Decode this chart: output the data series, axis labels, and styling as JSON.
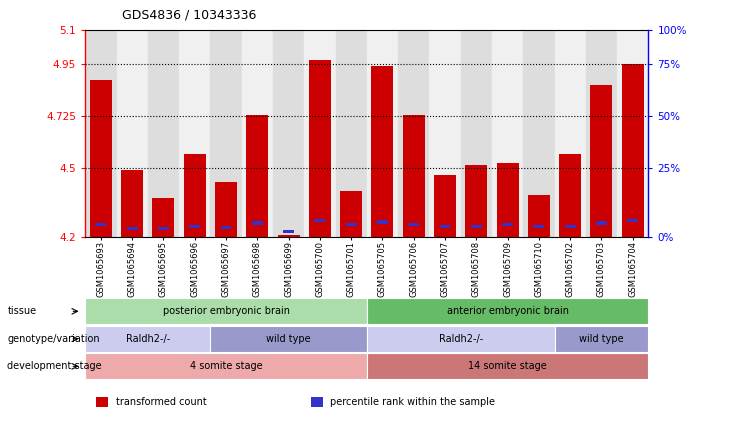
{
  "title": "GDS4836 / 10343336",
  "samples": [
    "GSM1065693",
    "GSM1065694",
    "GSM1065695",
    "GSM1065696",
    "GSM1065697",
    "GSM1065698",
    "GSM1065699",
    "GSM1065700",
    "GSM1065701",
    "GSM1065705",
    "GSM1065706",
    "GSM1065707",
    "GSM1065708",
    "GSM1065709",
    "GSM1065710",
    "GSM1065702",
    "GSM1065703",
    "GSM1065704"
  ],
  "red_values": [
    4.88,
    4.49,
    4.37,
    4.56,
    4.44,
    4.73,
    4.21,
    4.97,
    4.4,
    4.94,
    4.73,
    4.47,
    4.51,
    4.52,
    4.38,
    4.56,
    4.86,
    4.95
  ],
  "blue_values": [
    4.255,
    4.235,
    4.235,
    4.245,
    4.24,
    4.26,
    4.225,
    4.27,
    4.255,
    4.265,
    4.255,
    4.245,
    4.245,
    4.255,
    4.245,
    4.245,
    4.26,
    4.27
  ],
  "y_min": 4.2,
  "y_max": 5.1,
  "y_ticks_left": [
    4.2,
    4.5,
    4.725,
    4.95,
    5.1
  ],
  "y_ticks_right": [
    0,
    25,
    50,
    75,
    100
  ],
  "y_right_positions": [
    4.2,
    4.5,
    4.725,
    4.95,
    5.1
  ],
  "dotted_lines": [
    4.95,
    4.725,
    4.5
  ],
  "bar_color": "#cc0000",
  "blue_color": "#3333cc",
  "tissue_groups": [
    {
      "label": "posterior embryonic brain",
      "start": 0,
      "end": 8,
      "color": "#aaddaa"
    },
    {
      "label": "anterior embryonic brain",
      "start": 9,
      "end": 17,
      "color": "#66bb66"
    }
  ],
  "genotype_groups": [
    {
      "label": "Raldh2-/-",
      "start": 0,
      "end": 3,
      "color": "#ccccee"
    },
    {
      "label": "wild type",
      "start": 4,
      "end": 8,
      "color": "#9999cc"
    },
    {
      "label": "Raldh2-/-",
      "start": 9,
      "end": 14,
      "color": "#ccccee"
    },
    {
      "label": "wild type",
      "start": 15,
      "end": 17,
      "color": "#9999cc"
    }
  ],
  "dev_groups": [
    {
      "label": "4 somite stage",
      "start": 0,
      "end": 8,
      "color": "#eeaaaa"
    },
    {
      "label": "14 somite stage",
      "start": 9,
      "end": 17,
      "color": "#cc7777"
    }
  ],
  "row_labels": [
    "tissue",
    "genotype/variation",
    "development stage"
  ],
  "legend_items": [
    {
      "color": "#cc0000",
      "label": "transformed count"
    },
    {
      "color": "#3333cc",
      "label": "percentile rank within the sample"
    }
  ],
  "col_bg_even": "#dddddd",
  "col_bg_odd": "#f0f0f0"
}
